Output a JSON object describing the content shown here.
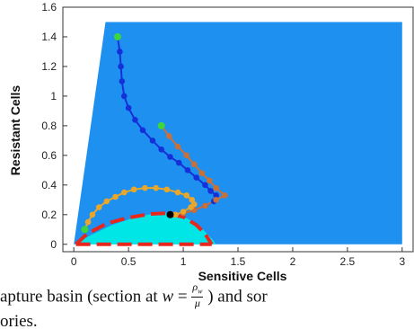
{
  "chart_data": {
    "type": "scatter",
    "xlabel": "Sensitive Cells",
    "ylabel": "Resistant Cells",
    "xlim": [
      -0.1,
      3.1
    ],
    "ylim": [
      -0.05,
      1.6
    ],
    "xticks": [
      0,
      0.5,
      1,
      1.5,
      2,
      2.5,
      3
    ],
    "xtick_labels": [
      "0",
      "0.5",
      "1",
      "1.5",
      "2",
      "2.5",
      "3"
    ],
    "yticks": [
      0,
      0.2,
      0.4,
      0.6,
      0.8,
      1,
      1.2,
      1.4,
      1.6
    ],
    "ytick_labels": [
      "0",
      "0.2",
      "0.4",
      "0.6",
      "0.8",
      "1",
      "1.2",
      "1.4",
      "1.6"
    ],
    "grid": false,
    "regions": [
      {
        "color": "#1e90f0",
        "points": [
          [
            0,
            0
          ],
          [
            0.29,
            1.5
          ],
          [
            3.0,
            1.5
          ],
          [
            3.0,
            0
          ]
        ]
      },
      {
        "color": "#00e5e5",
        "points": [
          [
            0,
            0
          ],
          [
            0.15,
            0.06
          ],
          [
            0.35,
            0.13
          ],
          [
            0.55,
            0.18
          ],
          [
            0.75,
            0.21
          ],
          [
            0.9,
            0.21
          ],
          [
            1.05,
            0.17
          ],
          [
            1.18,
            0.1
          ],
          [
            1.27,
            0.03
          ],
          [
            1.3,
            0
          ]
        ]
      }
    ],
    "boundary": {
      "color": "#e8261c",
      "points": [
        [
          0.02,
          0.0
        ],
        [
          0.12,
          0.07
        ],
        [
          0.3,
          0.14
        ],
        [
          0.5,
          0.18
        ],
        [
          0.7,
          0.205
        ],
        [
          0.85,
          0.21
        ],
        [
          1.0,
          0.185
        ],
        [
          1.12,
          0.13
        ],
        [
          1.2,
          0.07
        ],
        [
          1.26,
          0.0
        ]
      ],
      "bottom_y": 0.0
    },
    "series": [
      {
        "color": "#1530d8",
        "points": [
          [
            0.4,
            1.4
          ],
          [
            0.42,
            1.3
          ],
          [
            0.43,
            1.2
          ],
          [
            0.44,
            1.1
          ],
          [
            0.46,
            1.0
          ],
          [
            0.5,
            0.92
          ],
          [
            0.56,
            0.84
          ],
          [
            0.63,
            0.77
          ],
          [
            0.72,
            0.7
          ],
          [
            0.8,
            0.64
          ],
          [
            0.88,
            0.59
          ],
          [
            0.96,
            0.55
          ],
          [
            1.04,
            0.5
          ],
          [
            1.12,
            0.45
          ],
          [
            1.2,
            0.4
          ],
          [
            1.25,
            0.36
          ],
          [
            1.3,
            0.33
          ],
          [
            1.28,
            0.29
          ],
          [
            1.2,
            0.26
          ],
          [
            1.1,
            0.23
          ],
          [
            1.0,
            0.21
          ],
          [
            0.9,
            0.2
          ]
        ]
      },
      {
        "color": "#c8703a",
        "points": [
          [
            0.8,
            0.8
          ],
          [
            0.87,
            0.73
          ],
          [
            0.95,
            0.66
          ],
          [
            1.03,
            0.6
          ],
          [
            1.1,
            0.54
          ],
          [
            1.17,
            0.48
          ],
          [
            1.24,
            0.43
          ],
          [
            1.3,
            0.38
          ],
          [
            1.38,
            0.33
          ],
          [
            1.3,
            0.3
          ],
          [
            1.2,
            0.26
          ],
          [
            1.1,
            0.23
          ],
          [
            1.0,
            0.21
          ],
          [
            0.9,
            0.2
          ]
        ]
      },
      {
        "color": "#e8a62a",
        "points": [
          [
            0.1,
            0.1
          ],
          [
            0.13,
            0.15
          ],
          [
            0.17,
            0.2
          ],
          [
            0.23,
            0.25
          ],
          [
            0.3,
            0.29
          ],
          [
            0.38,
            0.32
          ],
          [
            0.46,
            0.35
          ],
          [
            0.55,
            0.37
          ],
          [
            0.65,
            0.38
          ],
          [
            0.75,
            0.38
          ],
          [
            0.85,
            0.37
          ],
          [
            0.95,
            0.35
          ],
          [
            1.03,
            0.33
          ],
          [
            1.08,
            0.3
          ],
          [
            1.1,
            0.27
          ],
          [
            1.07,
            0.25
          ],
          [
            1.0,
            0.22
          ],
          [
            0.93,
            0.2
          ]
        ]
      }
    ],
    "start_points": {
      "color": "#3dd63d",
      "points": [
        [
          0.4,
          1.4
        ],
        [
          0.8,
          0.8
        ],
        [
          0.1,
          0.1
        ]
      ]
    },
    "end_point": {
      "color": "#000000",
      "point": [
        0.88,
        0.2
      ]
    }
  },
  "caption": {
    "line1_part1": "apture basin (section at",
    "w_symbol": "w",
    "equals": "=",
    "rho_w": "ρ",
    "rho_sub": "w",
    "mu": "μ",
    "line1_part2": ") and sor",
    "line2": "ories."
  }
}
